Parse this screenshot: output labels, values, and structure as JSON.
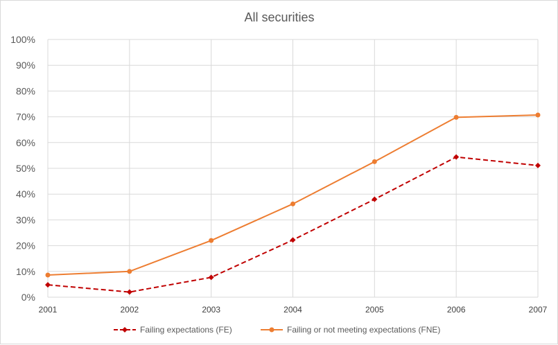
{
  "chart_data": {
    "type": "line",
    "title": "All securities",
    "categories": [
      "2001",
      "2002",
      "2003",
      "2004",
      "2005",
      "2006",
      "2007"
    ],
    "ylim": [
      0,
      100
    ],
    "yticks": [
      "0%",
      "10%",
      "20%",
      "30%",
      "40%",
      "50%",
      "60%",
      "70%",
      "80%",
      "90%",
      "100%"
    ],
    "grid": true,
    "legend_position": "bottom",
    "xlabel": "",
    "ylabel": "",
    "series": [
      {
        "name": "Failing expectations (FE)",
        "values": [
          4.8,
          2.0,
          7.7,
          22.2,
          38.0,
          54.4,
          51.1
        ],
        "color": "#c00000",
        "style": "dashed",
        "marker": "diamond"
      },
      {
        "name": "Failing or not meeting expectations (FNE)",
        "values": [
          8.6,
          10.0,
          22.0,
          36.2,
          52.6,
          69.8,
          70.7
        ],
        "color": "#ed7d31",
        "style": "solid",
        "marker": "circle"
      }
    ]
  }
}
